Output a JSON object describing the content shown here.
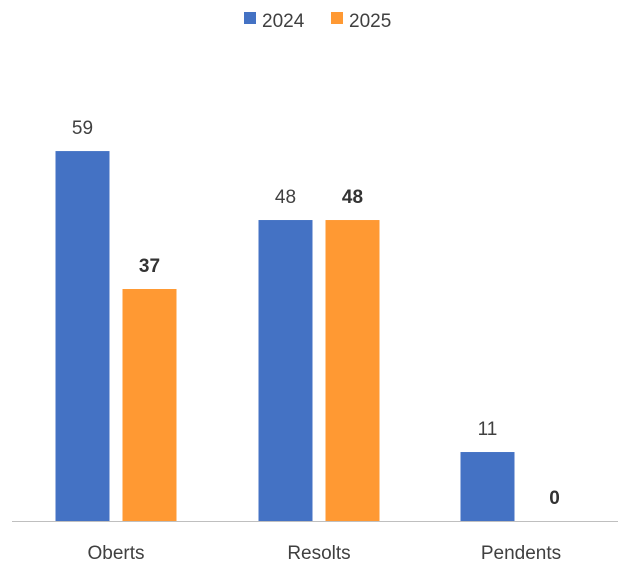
{
  "chart_data": {
    "type": "bar",
    "categories": [
      "Oberts",
      "Resolts",
      "Pendents"
    ],
    "series": [
      {
        "name": "2024",
        "color": "#4472C4",
        "values": [
          59,
          48,
          11
        ],
        "labels": [
          "59",
          "48",
          "11"
        ],
        "label_bold": false
      },
      {
        "name": "2025",
        "color": "#FF9933",
        "values": [
          37,
          48,
          0
        ],
        "labels": [
          "37",
          "48",
          "0"
        ],
        "label_bold": true
      }
    ],
    "title": "",
    "xlabel": "",
    "ylabel": "",
    "ylim": [
      0,
      59
    ],
    "grid": false,
    "legend_position": "top-center",
    "axis_color": "#BFBFBF"
  }
}
